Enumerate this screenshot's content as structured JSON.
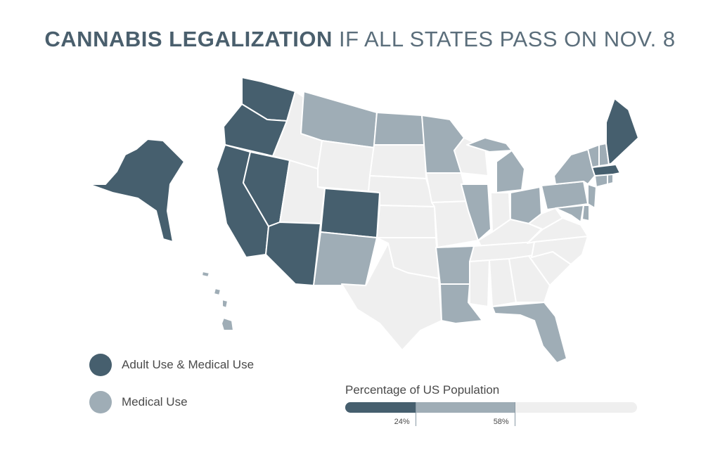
{
  "title": {
    "bold": "CANNABIS LEGALIZATION",
    "light": "IF ALL STATES PASS ON NOV. 8"
  },
  "colors": {
    "adult_use": "#465f6e",
    "medical_use": "#9fadb6",
    "none": "#efefef",
    "border": "#ffffff",
    "title": "#4a5f6d"
  },
  "legend": [
    {
      "label": "Adult Use & Medical Use",
      "category": "adult_use"
    },
    {
      "label": "Medical Use",
      "category": "medical_use"
    }
  ],
  "population": {
    "title": "Percentage of US Population",
    "adult_use_percent": 24,
    "medical_use_percent": 58,
    "adult_label": "24%",
    "medical_label": "58%"
  },
  "states": {
    "adult_use": [
      "Alaska",
      "Washington",
      "Oregon",
      "California",
      "Nevada",
      "Arizona",
      "Colorado",
      "Maine",
      "Massachusetts"
    ],
    "medical_use": [
      "Hawaii",
      "Montana",
      "North Dakota",
      "Minnesota",
      "New Mexico",
      "Arkansas",
      "Louisiana",
      "Florida",
      "Illinois",
      "Michigan",
      "Ohio",
      "Pennsylvania",
      "New York",
      "Vermont",
      "New Hampshire",
      "Connecticut",
      "Rhode Island",
      "New Jersey",
      "Delaware",
      "Maryland"
    ],
    "none": [
      "Idaho",
      "Utah",
      "Wyoming",
      "South Dakota",
      "Nebraska",
      "Kansas",
      "Oklahoma",
      "Texas",
      "Iowa",
      "Missouri",
      "Wisconsin",
      "Indiana",
      "Kentucky",
      "Tennessee",
      "Mississippi",
      "Alabama",
      "Georgia",
      "South Carolina",
      "North Carolina",
      "Virginia",
      "West Virginia"
    ]
  }
}
